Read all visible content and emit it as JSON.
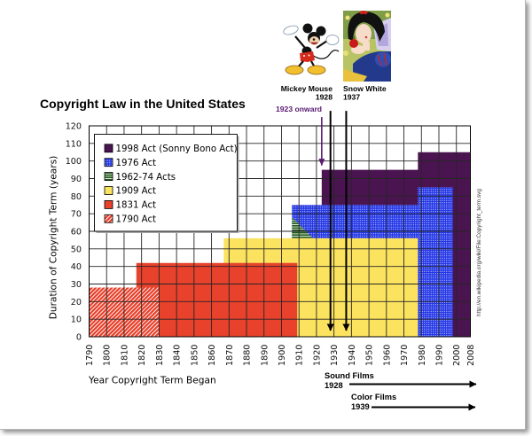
{
  "figure": {
    "title": "Copyright Law in the United States",
    "source_url": "http://en.wikipedia.org/wiki/File:Copyright_term.svg",
    "mickey": {
      "label": "Mickey Mouse",
      "year": "1928"
    },
    "snow_white": {
      "label": "Snow White",
      "year": "1937"
    },
    "callout": "1923 onward",
    "film_eras": [
      {
        "label": "Sound Films",
        "year": "1928"
      },
      {
        "label": "Color Films",
        "year": "1939"
      }
    ]
  },
  "chart_data": {
    "type": "area",
    "title": "Copyright Law in the United States",
    "xlabel": "Year Copyright Term Began",
    "ylabel": "Duration of Copyright Term (years)",
    "xlim": [
      1790,
      2008
    ],
    "ylim": [
      0,
      120
    ],
    "x_ticks": [
      1790,
      1800,
      1810,
      1820,
      1830,
      1840,
      1850,
      1860,
      1870,
      1880,
      1890,
      1900,
      1910,
      1920,
      1930,
      1940,
      1950,
      1960,
      1970,
      1980,
      1990,
      2000,
      2008
    ],
    "y_ticks": [
      0,
      10,
      20,
      30,
      40,
      50,
      60,
      70,
      80,
      90,
      100,
      110,
      120
    ],
    "grid": true,
    "legend_position": "upper left",
    "series": [
      {
        "key": "1998-act",
        "name": "1998 Act (Sonny Bono Act)",
        "color": "#4a1450",
        "pattern": "solid",
        "steps": [
          {
            "from": 1923,
            "to": 1978,
            "years": 95
          },
          {
            "from": 1978,
            "to": 2008,
            "years": 105
          }
        ]
      },
      {
        "key": "1976-act",
        "name": "1976 Act",
        "color": "#2538e6",
        "pattern": "dots",
        "steps": [
          {
            "from": 1906,
            "to": 1978,
            "years": 75
          },
          {
            "from": 1978,
            "to": 1998,
            "years": 85
          }
        ]
      },
      {
        "key": "1962-74-acts",
        "name": "1962-74 Acts",
        "color": "#1f5b17",
        "pattern": "horizontal-lines",
        "polygon": [
          [
            1906,
            56
          ],
          [
            1906,
            68
          ],
          [
            1918,
            56
          ]
        ]
      },
      {
        "key": "1909-act",
        "name": "1909 Act",
        "color": "#fbe25f",
        "pattern": "solid",
        "steps": [
          {
            "from": 1867,
            "to": 1978,
            "years": 56
          }
        ]
      },
      {
        "key": "1831-act",
        "name": "1831 Act",
        "color": "#e8412c",
        "pattern": "solid",
        "steps": [
          {
            "from": 1817,
            "to": 1909,
            "years": 42
          }
        ]
      },
      {
        "key": "1790-act",
        "name": "1790 Act",
        "color": "#e8412c",
        "pattern": "diagonal-hatch",
        "steps": [
          {
            "from": 1790,
            "to": 1830,
            "years": 28
          }
        ]
      }
    ],
    "annotations": [
      {
        "type": "vertical-arrow",
        "text": "1923 onward",
        "x": 1923,
        "from": 125,
        "to": 97.5,
        "color": "#5a1a6e",
        "width": 1.6
      },
      {
        "type": "vertical-arrow",
        "text": "Mickey Mouse 1928",
        "x": 1928,
        "from": 128.5,
        "to": 3.5,
        "color": "#000000",
        "width": 2
      },
      {
        "type": "vertical-arrow",
        "text": "Snow White 1937",
        "x": 1937,
        "from": 128.5,
        "to": 3.5,
        "color": "#000000",
        "width": 2
      },
      {
        "type": "horizontal-arrow",
        "text": "Sound Films 1928",
        "x": 1928,
        "direction": "right"
      },
      {
        "type": "horizontal-arrow",
        "text": "Color Films 1939",
        "x": 1939,
        "direction": "right"
      }
    ]
  }
}
